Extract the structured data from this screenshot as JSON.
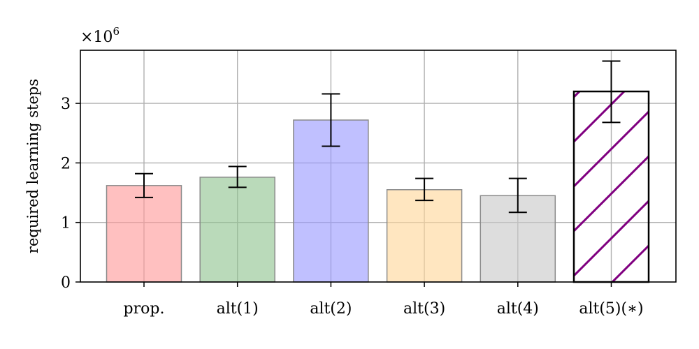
{
  "chart_data": {
    "type": "bar",
    "categories": [
      "prop.",
      "alt(1)",
      "alt(2)",
      "alt(3)",
      "alt(4)",
      "alt(5)(∗)"
    ],
    "values": [
      1.62,
      1.76,
      2.72,
      1.55,
      1.45,
      3.2
    ],
    "error_low": [
      1.42,
      1.59,
      2.28,
      1.37,
      1.17,
      2.68
    ],
    "error_high": [
      1.82,
      1.94,
      3.16,
      1.74,
      1.74,
      3.71
    ],
    "colors": [
      "#ff9999",
      "#8fc48f",
      "#9999ff",
      "#ffd699",
      "#c8c8c8",
      "none"
    ],
    "hatched": [
      false,
      false,
      false,
      false,
      false,
      true
    ],
    "hatch_color": "#800080",
    "ylabel": "required learning steps",
    "y_multiplier_base": "×10",
    "y_multiplier_exp": "6",
    "ylim": [
      0,
      3.0
    ],
    "yticks": [
      0,
      1,
      2,
      3
    ],
    "yticklabels": [
      "0",
      "1",
      "2",
      "3"
    ],
    "grid": true
  }
}
